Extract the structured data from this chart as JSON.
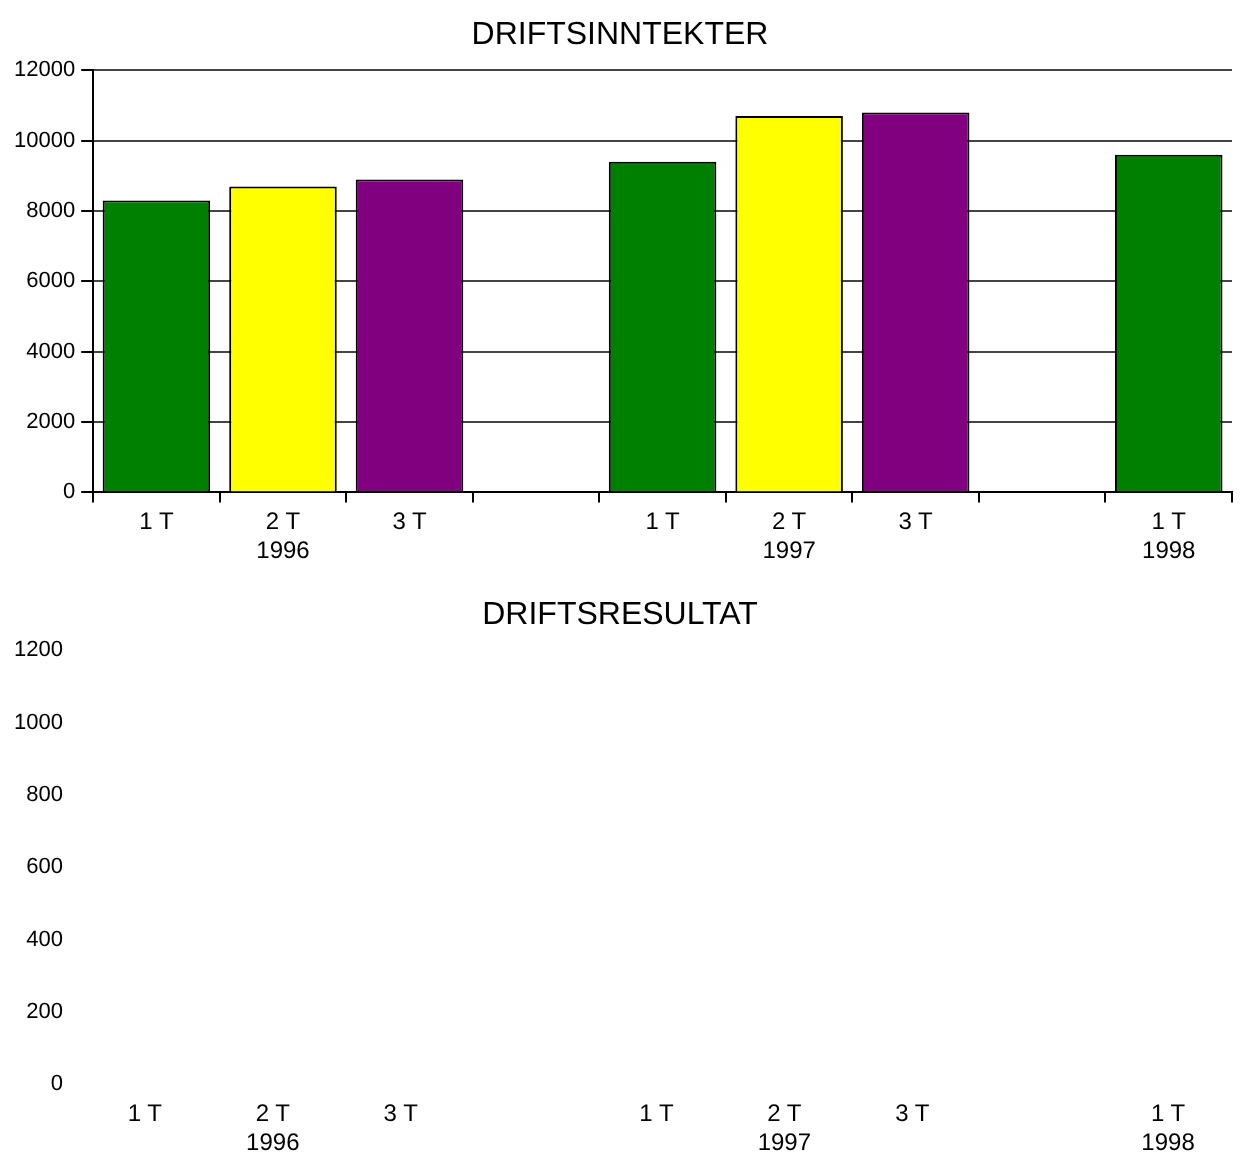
{
  "chart_data": [
    {
      "type": "bar",
      "title": "DRIFTSINNTEKTER",
      "categories": [
        "1 T",
        "2 T\n1996",
        "3 T",
        null,
        "1 T",
        "2 T\n1997",
        "3 T",
        null,
        "1 T\n1998"
      ],
      "values": [
        8300,
        8700,
        8900,
        null,
        9400,
        10700,
        10800,
        null,
        9600
      ],
      "colors": [
        "#008000",
        "#ffff00",
        "#800080",
        null,
        "#008000",
        "#ffff00",
        "#800080",
        null,
        "#008000"
      ],
      "ylim": [
        0,
        12000
      ],
      "yticks": [
        0,
        2000,
        4000,
        6000,
        8000,
        10000,
        12000
      ],
      "grid": "y",
      "legend": false
    },
    {
      "type": "bar",
      "title": "DRIFTSRESULTAT",
      "categories": [
        "1 T",
        "2 T\n1996",
        "3 T",
        null,
        "1 T",
        "2 T\n1997",
        "3 T",
        null,
        "1 T\n1998"
      ],
      "values": [
        null,
        null,
        null,
        null,
        null,
        null,
        null,
        null,
        null
      ],
      "ylim": [
        0,
        1200
      ],
      "yticks": [
        0,
        200,
        400,
        600,
        800,
        1000,
        1200
      ],
      "grid": false,
      "legend": false
    }
  ]
}
